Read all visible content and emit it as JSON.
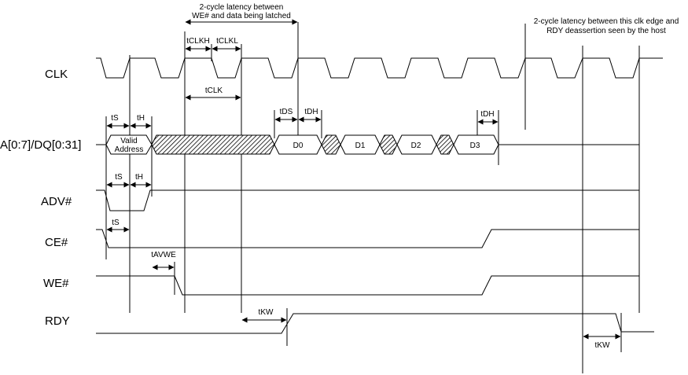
{
  "signals": {
    "clk": "CLK",
    "addr": "A[0:7]/DQ[0:31]",
    "adv": "ADV#",
    "ce": "CE#",
    "we": "WE#",
    "rdy": "RDY"
  },
  "annotations": {
    "latency_we_line1": "2-cycle latency between",
    "latency_we_line2": "WE# and data being latched",
    "latency_rdy_line1": "2-cycle latency between this clk edge and",
    "latency_rdy_line2": "RDY deassertion seen by the host"
  },
  "timing_labels": {
    "tclkh": "tCLKH",
    "tclkl": "tCLKL",
    "tclk": "tCLK",
    "ts_addr": "tS",
    "th_addr": "tH",
    "tds": "tDS",
    "tdh_d0": "tDH",
    "tdh_d3": "tDH",
    "ts_adv": "tS",
    "th_adv": "tH",
    "ts_ce": "tS",
    "tavwe": "tAVWE",
    "tkw_assert": "tKW",
    "tkw_deassert": "tKW"
  },
  "bus": {
    "valid_line1": "Valid",
    "valid_line2": "Address",
    "d0": "D0",
    "d1": "D1",
    "d2": "D2",
    "d3": "D3"
  }
}
